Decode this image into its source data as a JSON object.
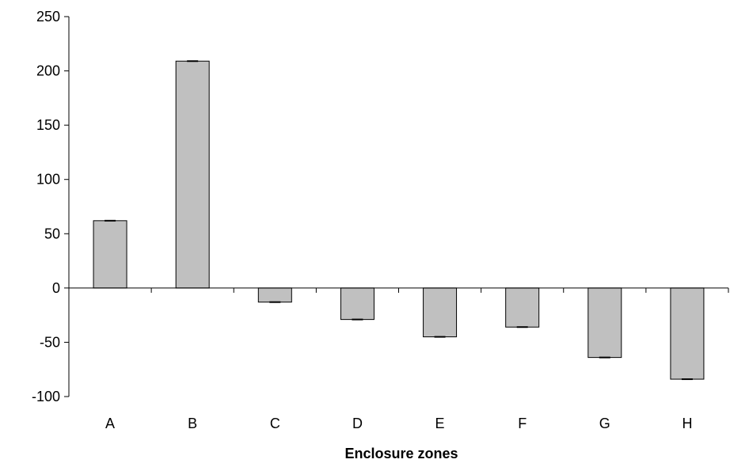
{
  "chart_data": {
    "type": "bar",
    "title": "",
    "xlabel": "Enclosure zones",
    "ylabel": "",
    "categories": [
      "A",
      "B",
      "C",
      "D",
      "E",
      "F",
      "G",
      "H"
    ],
    "values": [
      62,
      209,
      -13,
      -29,
      -45,
      -36,
      -64,
      -84
    ],
    "ylim": [
      -100,
      250
    ],
    "yticks": [
      250,
      200,
      150,
      100,
      50,
      0,
      -50,
      -100
    ],
    "grid": false,
    "legend": "none",
    "bar_color": "#c0c0c0",
    "bar_edge_color": "#000000"
  }
}
